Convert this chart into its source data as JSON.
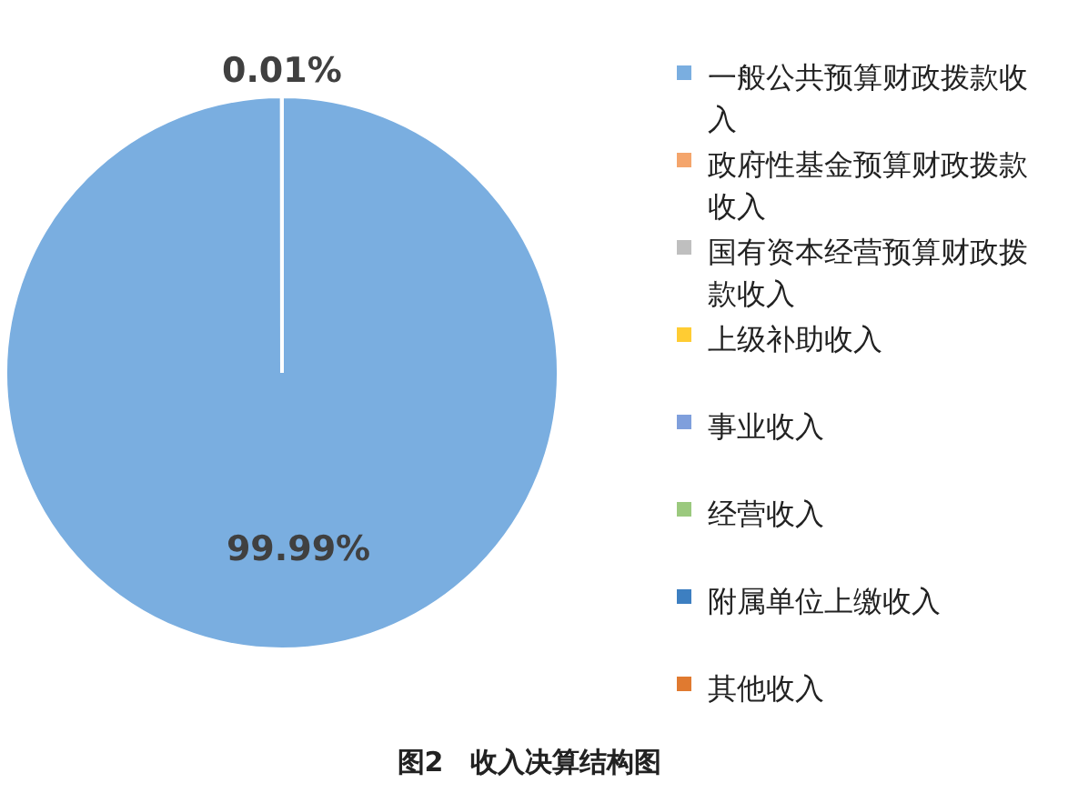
{
  "chart_data": {
    "type": "pie",
    "title": "图2　收入决算结构图",
    "categories": [
      "一般公共预算财政拨款收入",
      "政府性基金预算财政拨款收入",
      "国有资本经营预算财政拨款收入",
      "上级补助收入",
      "事业收入",
      "经营收入",
      "附属单位上缴收入",
      "其他收入"
    ],
    "values": [
      99.99,
      0,
      0,
      0,
      0,
      0,
      0,
      0.01
    ],
    "colors": [
      "#7aaee0",
      "#f4a56c",
      "#bfbfbf",
      "#ffcc33",
      "#7f9fdc",
      "#9bc97e",
      "#3d7fc1",
      "#e07a30"
    ],
    "value_labels": [
      "99.99%",
      null,
      null,
      null,
      null,
      null,
      null,
      "0.01%"
    ],
    "legend": "right"
  }
}
